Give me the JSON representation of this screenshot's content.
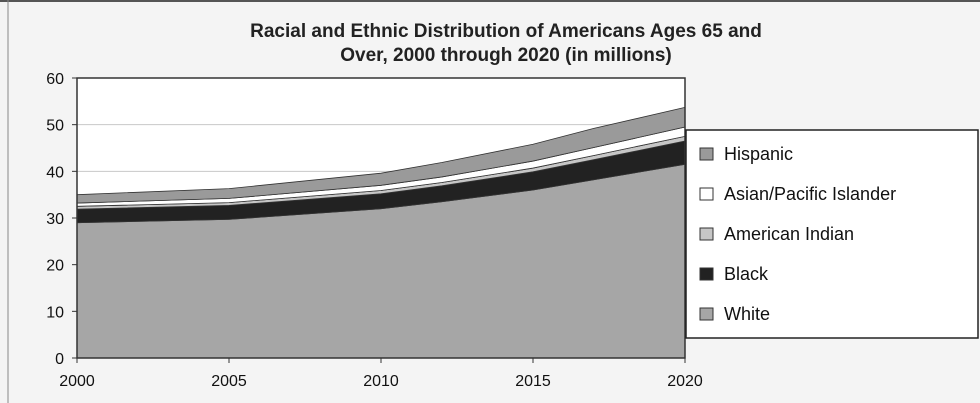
{
  "colors": {
    "background": "#f4f4f4",
    "plot_area": "#ffffff",
    "gridline": "#c8c8c8",
    "border": "#333333"
  },
  "chart_data": {
    "type": "area",
    "stacked": true,
    "title": [
      "Racial and Ethnic Distribution of Americans Ages 65 and",
      "Over, 2000 through 2020 (in millions)"
    ],
    "xlabel": "",
    "ylabel": "",
    "x": [
      2000,
      2005,
      2010,
      2012,
      2015,
      2017,
      2020
    ],
    "x_ticks": [
      "2000",
      "2005",
      "2010",
      "2015",
      "2020"
    ],
    "y_ticks": [
      "0",
      "10",
      "20",
      "30",
      "40",
      "50",
      "60"
    ],
    "ylim": [
      0,
      60
    ],
    "xlim": [
      2000,
      2020
    ],
    "grid": true,
    "legend_position": "right",
    "series": [
      {
        "name": "White",
        "color": "#a6a6a6",
        "values": [
          29.0,
          29.7,
          32.0,
          33.5,
          36.0,
          38.2,
          41.5
        ]
      },
      {
        "name": "Black",
        "color": "#222222",
        "values": [
          2.9,
          3.0,
          3.2,
          3.4,
          3.9,
          4.3,
          5.0
        ]
      },
      {
        "name": "American Indian",
        "color": "#c6c6c6",
        "values": [
          0.6,
          0.6,
          0.7,
          0.7,
          0.8,
          0.9,
          1.0
        ]
      },
      {
        "name": "Asian/Pacific Islander",
        "color": "#ffffff",
        "values": [
          0.7,
          0.9,
          1.1,
          1.2,
          1.5,
          1.7,
          2.0
        ]
      },
      {
        "name": "Hispanic",
        "color": "#9a9a9a",
        "values": [
          1.8,
          2.1,
          2.6,
          3.1,
          3.6,
          4.1,
          4.2
        ]
      }
    ],
    "legend_order": [
      "Hispanic",
      "Asian/Pacific Islander",
      "American Indian",
      "Black",
      "White"
    ]
  }
}
